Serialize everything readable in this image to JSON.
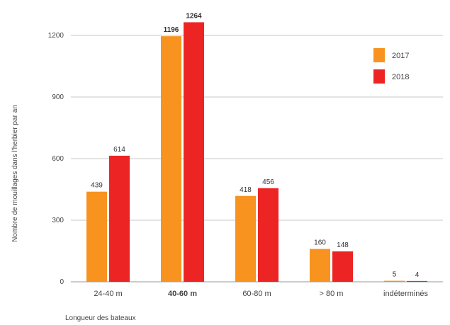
{
  "chart_data": {
    "type": "bar",
    "xlabel": "Longueur des bateaux",
    "ylabel": "Nombre de mouillages dans l'herbier par an",
    "categories": [
      "24-40 m",
      "40-60 m",
      "60-80 m",
      "> 80 m",
      "indéterminés"
    ],
    "bold_category_index": 1,
    "series": [
      {
        "name": "2017",
        "values": [
          439,
          1196,
          418,
          160,
          5
        ],
        "color": "#f7931e"
      },
      {
        "name": "2018",
        "values": [
          614,
          1264,
          456,
          148,
          4
        ],
        "color": "#ed2424"
      }
    ],
    "yticks": [
      0,
      300,
      600,
      900,
      1200
    ],
    "ylim": [
      0,
      1300
    ],
    "grid": true,
    "legend_position": "top-right"
  }
}
